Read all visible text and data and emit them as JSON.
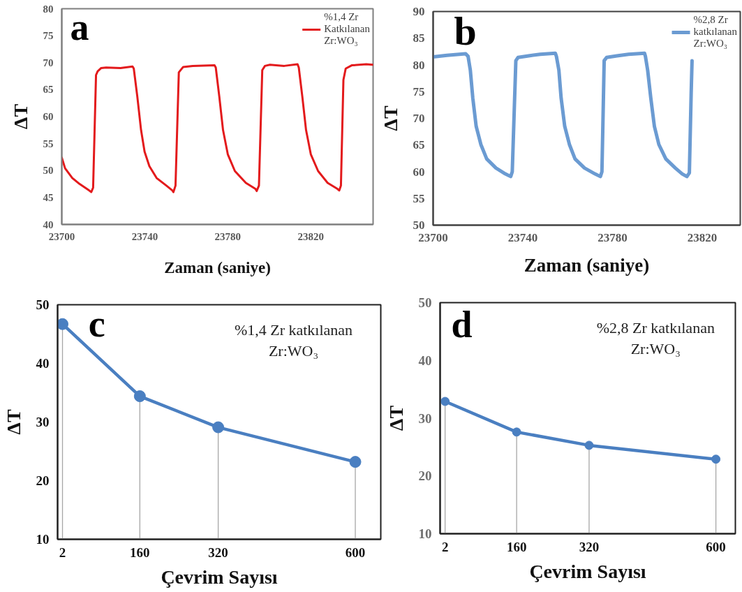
{
  "chart_data": [
    {
      "type": "line",
      "title": "a",
      "xlabel": "Zaman (saniye)",
      "ylabel": "ΔT",
      "xlim": [
        23700,
        23850
      ],
      "ylim": [
        40,
        80
      ],
      "xticks": [
        23700,
        23740,
        23780,
        23820
      ],
      "yticks": [
        40,
        45,
        50,
        55,
        60,
        65,
        70,
        75,
        80
      ],
      "legend": "top right",
      "x": [
        23700,
        23701.6,
        23705.1,
        23708.6,
        23713.2,
        23714.2,
        23715.1,
        23716.5,
        23717.3,
        23719.0,
        23721.4,
        23728.3,
        23734.1,
        23734.7,
        23736.4,
        23738.2,
        23739.9,
        23742.2,
        23745.7,
        23750.4,
        23753.3,
        23753.8,
        23754.8,
        23756.4,
        23758.5,
        23763.1,
        23773.6,
        23774.2,
        23775.9,
        23777.7,
        23780.0,
        23783.4,
        23788.7,
        23793.3,
        23793.9,
        23795.0,
        23796.6,
        23797.9,
        23800.3,
        23807.2,
        23813.6,
        23814.2,
        23815.9,
        23817.7,
        23820.0,
        23823.5,
        23828.1,
        23832.8,
        23833.7,
        23834.5,
        23835.7,
        23836.8,
        23839.7,
        23846.7,
        23849.9
      ],
      "series": [
        {
          "name": "%1,4 Zr Katkılanan Zr:WO₃",
          "color": "#e31a1c",
          "values": [
            52.4,
            50.4,
            48.6,
            47.5,
            46.3,
            46.0,
            46.8,
            67.7,
            68.4,
            69.0,
            69.1,
            69.0,
            69.3,
            68.9,
            63.7,
            57.5,
            53.5,
            50.8,
            48.6,
            47.2,
            46.3,
            46.0,
            47.2,
            68.2,
            69.2,
            69.4,
            69.5,
            69.1,
            63.7,
            57.5,
            53.0,
            49.9,
            47.7,
            46.6,
            46.2,
            47.2,
            68.6,
            69.4,
            69.6,
            69.4,
            69.7,
            69.1,
            63.7,
            57.5,
            53.0,
            49.9,
            47.7,
            46.6,
            46.3,
            47.2,
            66.8,
            68.9,
            69.5,
            69.7,
            69.6
          ]
        }
      ]
    },
    {
      "type": "line",
      "title": "b",
      "xlabel": "Zaman (saniye)",
      "ylabel": "ΔT",
      "xlim": [
        23700,
        23837
      ],
      "ylim": [
        50,
        90
      ],
      "xticks": [
        23700,
        23740,
        23780,
        23820
      ],
      "yticks": [
        50,
        55,
        60,
        65,
        70,
        75,
        80,
        85,
        90
      ],
      "legend": "top right",
      "x": [
        23700,
        23706.2,
        23714.5,
        23715.6,
        23716.6,
        23717.7,
        23719.2,
        23721.3,
        23723.9,
        23728.0,
        23732.2,
        23734.6,
        23735.3,
        23736.9,
        23737.9,
        23742.6,
        23747.8,
        23754.5,
        23755.0,
        23756.1,
        23757.1,
        23758.7,
        23760.8,
        23763.3,
        23767.5,
        23772.2,
        23774.6,
        23775.3,
        23776.3,
        23777.4,
        23782.0,
        23787.2,
        23794.3,
        23794.7,
        23795.7,
        23797.1,
        23798.7,
        23800.7,
        23803.8,
        23808.0,
        23811.1,
        23813.2,
        23814.3,
        23815.1,
        23815.5
      ],
      "series": [
        {
          "name": "%2,8 Zr katkılanan Zr:WO₃",
          "color": "#6b9bd2",
          "values": [
            81.5,
            81.8,
            82.1,
            81.6,
            79.0,
            73.8,
            68.5,
            65.1,
            62.4,
            60.7,
            59.6,
            59.1,
            60.0,
            80.8,
            81.4,
            81.7,
            82.0,
            82.2,
            81.6,
            79.0,
            73.8,
            68.5,
            65.1,
            62.4,
            60.7,
            59.6,
            59.1,
            60.0,
            80.8,
            81.4,
            81.7,
            82.0,
            82.2,
            81.6,
            79.0,
            73.8,
            68.5,
            65.1,
            62.4,
            60.7,
            59.6,
            59.1,
            59.8,
            74.6,
            80.8
          ]
        }
      ]
    },
    {
      "type": "line",
      "title": "c",
      "xlabel": "Çevrim Sayısı",
      "ylabel": "ΔT",
      "xlim": [
        -8,
        652
      ],
      "ylim": [
        10,
        50
      ],
      "xticks": [
        2,
        160,
        320,
        600
      ],
      "yticks": [
        10,
        20,
        30,
        40,
        50
      ],
      "line_style": "solid",
      "annotations": [
        "%1,4 Zr katkılanan Zr:WO₃"
      ],
      "x": [
        2,
        160,
        320,
        600
      ],
      "series": [
        {
          "color": "#4a7fc1",
          "values": [
            46.7,
            34.4,
            29.1,
            23.2
          ]
        },
        {
          "type": "lollipop",
          "color": "#4a7fc1",
          "marker": "circle",
          "values": [
            46.7,
            34.4,
            29.1,
            23.2
          ]
        }
      ]
    },
    {
      "type": "line",
      "title": "d",
      "xlabel": "Çevrim Sayısı",
      "ylabel": "ΔT",
      "xlim": [
        -9,
        643
      ],
      "ylim": [
        10,
        50
      ],
      "xticks": [
        2,
        160,
        320,
        600
      ],
      "yticks": [
        10,
        20,
        30,
        40,
        50
      ],
      "line_style": "solid",
      "annotations": [
        "%2,8 Zr katkılanan Zr:WO₃"
      ],
      "x": [
        2,
        160,
        320,
        600
      ],
      "series": [
        {
          "color": "#4a7fc1",
          "values": [
            32.9,
            27.6,
            25.3,
            22.9
          ]
        },
        {
          "type": "lollipop",
          "color": "#4a7fc1",
          "marker": "circle",
          "values": [
            32.9,
            27.6,
            25.3,
            22.9
          ]
        }
      ]
    }
  ]
}
